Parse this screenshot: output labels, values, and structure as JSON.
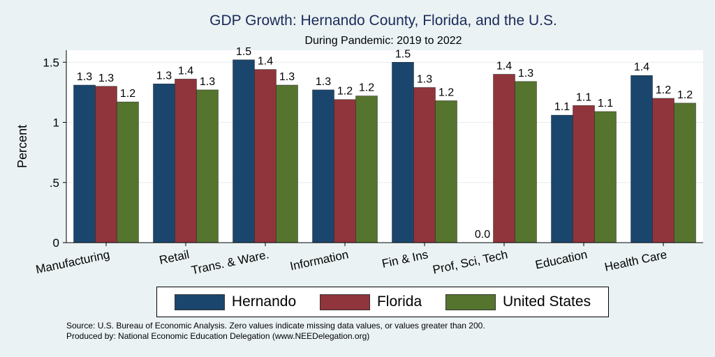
{
  "title": "GDP Growth: Hernando County, Florida, and the U.S.",
  "subtitle": "During Pandemic: 2019 to 2022",
  "source_line1": "Source: U.S. Bureau of Economic Analysis. Zero values indicate missing data values, or values greater than 200.",
  "source_line2": "Produced by: National Economic Education Delegation (www.NEEDelegation.org)",
  "chart_data": {
    "type": "bar",
    "ylabel": "Percent",
    "ylim": [
      0,
      1.6
    ],
    "yticks": [
      0,
      0.5,
      1,
      1.5
    ],
    "ytick_labels": [
      "0",
      ".5",
      "1",
      "1.5"
    ],
    "grid": true,
    "legend_position": "bottom",
    "categories": [
      "Manufacturing",
      "Retail",
      "Trans. & Ware.",
      "Information",
      "Fin & Ins",
      "Prof, Sci, Tech",
      "Education",
      "Health Care"
    ],
    "series": [
      {
        "name": "Hernando",
        "color": "#1a466e",
        "values": [
          1.31,
          1.32,
          1.52,
          1.27,
          1.5,
          0.0,
          1.06,
          1.39
        ],
        "labels": [
          "1.3",
          "1.3",
          "1.5",
          "1.3",
          "1.5",
          "0.0",
          "1.1",
          "1.4"
        ]
      },
      {
        "name": "Florida",
        "color": "#90353b",
        "values": [
          1.3,
          1.36,
          1.44,
          1.19,
          1.29,
          1.4,
          1.14,
          1.2
        ],
        "labels": [
          "1.3",
          "1.4",
          "1.4",
          "1.2",
          "1.3",
          "1.4",
          "1.1",
          "1.2"
        ]
      },
      {
        "name": "United States",
        "color": "#55752f",
        "values": [
          1.17,
          1.27,
          1.31,
          1.22,
          1.18,
          1.34,
          1.09,
          1.16
        ],
        "labels": [
          "1.2",
          "1.3",
          "1.3",
          "1.2",
          "1.2",
          "1.3",
          "1.1",
          "1.2"
        ]
      }
    ]
  }
}
